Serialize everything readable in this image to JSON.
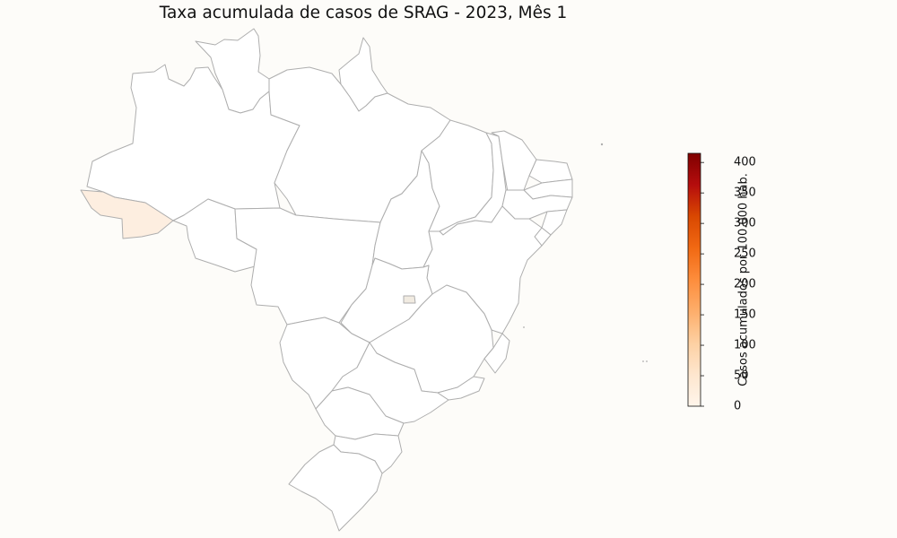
{
  "title": "Taxa acumulada de casos de SRAG - 2023, Mês 1",
  "colorbar": {
    "label": "Casos acumulados por 100.000 hab.",
    "min": 0,
    "max": 415,
    "ticks": [
      "0",
      "50",
      "100",
      "150",
      "200",
      "250",
      "300",
      "350",
      "400"
    ],
    "colors": [
      "#fff5eb",
      "#fee6ce",
      "#fdd0a2",
      "#fdae6b",
      "#fd8d3c",
      "#f16913",
      "#d94801",
      "#b50d0d",
      "#7f0000"
    ]
  },
  "regions": [
    {
      "state": "Acre",
      "fill": "#fdeee0"
    },
    {
      "state": "Distrito Federal",
      "fill": "#f1ebe1"
    }
  ]
}
